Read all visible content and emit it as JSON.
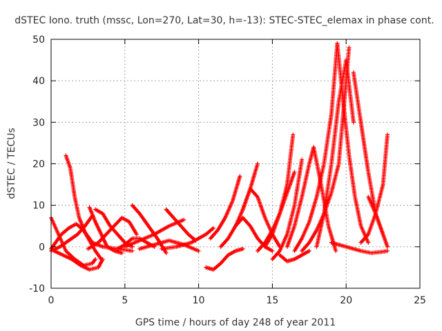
{
  "chart_data": {
    "type": "scatter",
    "title": "dSTEC Iono. truth (mssc, Lon=270, Lat=30, h=-13): STEC-STEC_elemax in phase cont.",
    "xlabel": "GPS time / hours of day 248 of year 2011",
    "ylabel": "dSTEC  / TECUs",
    "xlim": [
      0,
      25
    ],
    "ylim": [
      -10,
      50
    ],
    "xticks": [
      0,
      5,
      10,
      15,
      20,
      25
    ],
    "yticks": [
      -10,
      0,
      10,
      20,
      30,
      40,
      50
    ],
    "xtick_labels": [
      "0",
      "5",
      "10",
      "15",
      "20",
      "25"
    ],
    "ytick_labels": [
      "-10",
      "0",
      "10",
      "20",
      "30",
      "40",
      "50"
    ],
    "grid": true,
    "marker": "+",
    "color": "#ff0000",
    "series": [
      {
        "x": [
          0.0,
          0.5,
          1.0,
          1.6,
          2.2,
          2.8,
          3.0
        ],
        "y": [
          7,
          3,
          -1,
          -3,
          -4.5,
          -4,
          -3
        ]
      },
      {
        "x": [
          0.0,
          0.6,
          1.2,
          1.8,
          2.3,
          2.8
        ],
        "y": [
          -1,
          0,
          1.5,
          3,
          5,
          7.5
        ]
      },
      {
        "x": [
          0.0,
          0.3,
          0.7,
          1.2,
          1.7,
          2.2,
          2.6,
          3.0,
          3.4
        ],
        "y": [
          -0.5,
          1,
          3,
          4.5,
          5.5,
          4,
          1.5,
          -1,
          -3
        ]
      },
      {
        "x": [
          0.2,
          0.8,
          1.4,
          2.0,
          2.6,
          3.2,
          3.5
        ],
        "y": [
          -1,
          -2,
          -3,
          -4.5,
          -5.5,
          -5,
          -3
        ]
      },
      {
        "x": [
          1.0,
          1.3,
          1.6,
          1.9,
          2.3,
          2.8,
          3.5,
          4.5,
          5.5
        ],
        "y": [
          22,
          19,
          12,
          7,
          3.5,
          1,
          0,
          -0.5,
          -1
        ]
      },
      {
        "x": [
          2.6,
          3.0,
          3.4,
          3.8,
          4.3,
          4.8
        ],
        "y": [
          9.5,
          6,
          3,
          0,
          -1,
          -1.5
        ]
      },
      {
        "x": [
          3.0,
          3.5,
          4.0,
          4.5,
          5.0,
          5.5
        ],
        "y": [
          9,
          8,
          5,
          3,
          1,
          0
        ]
      },
      {
        "x": [
          2.5,
          3.2,
          4.0,
          4.8,
          5.3,
          5.8
        ],
        "y": [
          -0.5,
          1,
          4,
          7,
          6,
          3
        ]
      },
      {
        "x": [
          4.5,
          5.0,
          5.5,
          6.0,
          6.5,
          7.0
        ],
        "y": [
          -0.5,
          0.5,
          2,
          2,
          1,
          0
        ]
      },
      {
        "x": [
          5.5,
          6.0,
          6.6,
          7.2,
          7.8
        ],
        "y": [
          10,
          8,
          5,
          2,
          -1.5
        ]
      },
      {
        "x": [
          6.0,
          7.0,
          8.0,
          9.0,
          10.0
        ],
        "y": [
          -0.5,
          0.5,
          1.5,
          0.5,
          -1
        ]
      },
      {
        "x": [
          5.0,
          6.0,
          7.0,
          8.0,
          9.0
        ],
        "y": [
          0,
          1.5,
          3,
          5,
          6.5
        ]
      },
      {
        "x": [
          7.8,
          8.3,
          8.8,
          9.3,
          9.8
        ],
        "y": [
          9,
          7,
          5,
          3,
          1.5
        ]
      },
      {
        "x": [
          7.5,
          8.5,
          9.5,
          10.5,
          11.0
        ],
        "y": [
          -0.5,
          0,
          1,
          3,
          4.5
        ]
      },
      {
        "x": [
          10.5,
          11.0,
          11.5,
          12.0,
          12.5,
          13.0
        ],
        "y": [
          -5,
          -5.5,
          -4,
          -2,
          -1,
          -0.5
        ]
      },
      {
        "x": [
          10.8,
          11.3,
          11.8,
          12.3,
          12.8
        ],
        "y": [
          2,
          4,
          7,
          11,
          17
        ]
      },
      {
        "x": [
          11.5,
          12.0,
          12.5,
          13.0,
          13.5,
          14.0
        ],
        "y": [
          0,
          2,
          5,
          9,
          14,
          20
        ]
      },
      {
        "x": [
          12.5,
          13.0,
          13.5,
          14.0,
          14.5,
          15.0
        ],
        "y": [
          5,
          7,
          5,
          2,
          0,
          -1
        ]
      },
      {
        "x": [
          13.0,
          13.5,
          14.0,
          14.5,
          15.0,
          15.5
        ],
        "y": [
          9,
          14,
          12,
          7,
          3,
          0
        ]
      },
      {
        "x": [
          14.0,
          14.5,
          15.0,
          15.5,
          16.0,
          16.5
        ],
        "y": [
          -1,
          1,
          4,
          8,
          13,
          18
        ]
      },
      {
        "x": [
          14.5,
          15.0,
          15.5,
          16.0,
          16.4
        ],
        "y": [
          0,
          3,
          8,
          15,
          27
        ]
      },
      {
        "x": [
          15.0,
          15.5,
          16.0,
          16.5,
          17.0
        ],
        "y": [
          -3,
          -1,
          3,
          10,
          21
        ]
      },
      {
        "x": [
          15.5,
          16.0,
          16.5,
          17.0,
          17.5
        ],
        "y": [
          -2,
          -3.5,
          -3,
          -2,
          -1
        ]
      },
      {
        "x": [
          16.0,
          16.5,
          17.0,
          17.5,
          17.8,
          18.3,
          18.8,
          19.3
        ],
        "y": [
          0,
          5,
          12,
          20,
          24,
          15,
          5,
          -1
        ]
      },
      {
        "x": [
          16.5,
          17.0,
          17.5,
          18.0,
          18.5,
          19.0,
          19.4
        ],
        "y": [
          -1,
          2,
          6,
          12,
          20,
          32,
          49
        ]
      },
      {
        "x": [
          18.0,
          18.5,
          19.0,
          19.5,
          20.0,
          20.5
        ],
        "y": [
          0,
          8,
          20,
          35,
          45,
          30
        ]
      },
      {
        "x": [
          17.0,
          17.5,
          18.0,
          18.5,
          19.0,
          19.5,
          20.2
        ],
        "y": [
          -1,
          1,
          4,
          8,
          13,
          20,
          48
        ]
      },
      {
        "x": [
          19.4,
          19.8,
          20.2,
          20.6,
          21.0,
          21.5
        ],
        "y": [
          49,
          35,
          22,
          12,
          5,
          1
        ]
      },
      {
        "x": [
          20.5,
          21.0,
          21.5,
          22.0,
          22.5
        ],
        "y": [
          42,
          30,
          18,
          8,
          3
        ]
      },
      {
        "x": [
          21.0,
          21.5,
          22.0,
          22.5,
          22.8
        ],
        "y": [
          1,
          3,
          8,
          15,
          27
        ]
      },
      {
        "x": [
          19.0,
          20.0,
          21.0,
          21.7,
          22.5,
          22.8
        ],
        "y": [
          1,
          0,
          -1,
          -1.5,
          -1.2,
          -1
        ]
      },
      {
        "x": [
          21.5,
          22.0,
          22.5,
          22.8
        ],
        "y": [
          12,
          8,
          3,
          0
        ]
      }
    ]
  }
}
